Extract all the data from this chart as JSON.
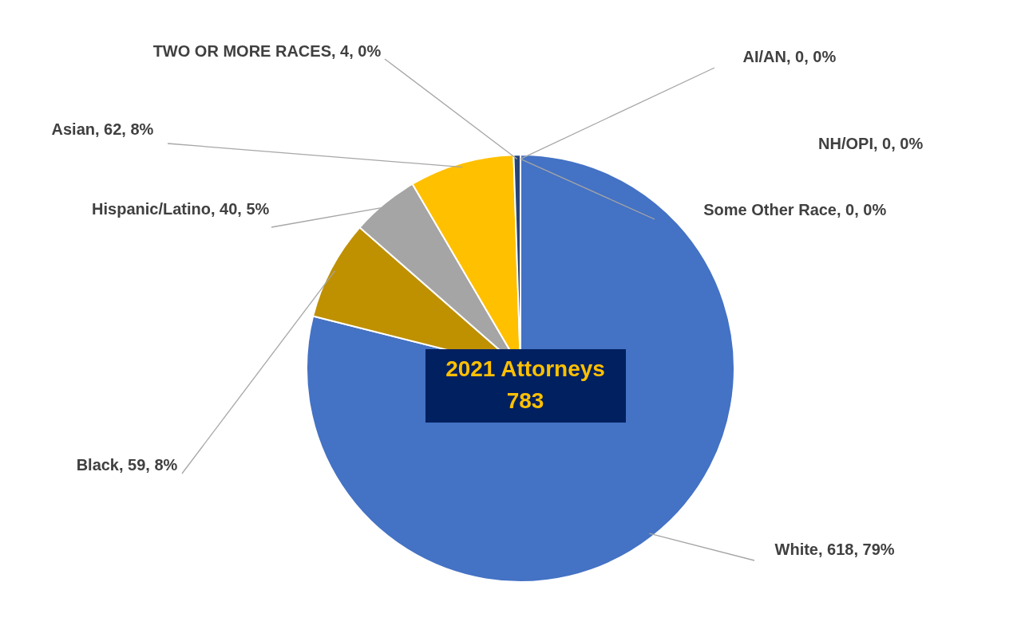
{
  "chart_data": {
    "type": "pie",
    "categories": [
      "White",
      "Black",
      "Hispanic/Latino",
      "Asian",
      "TWO OR MORE RACES",
      "AI/AN",
      "NH/OPI",
      "Some Other Race"
    ],
    "values": [
      618,
      59,
      40,
      62,
      4,
      0,
      0,
      0
    ],
    "colors": [
      "#4472c4",
      "#bf9000",
      "#a5a5a5",
      "#ffc000",
      "#264478",
      "#9e480e",
      "#636363",
      "#997300"
    ],
    "value_labels": [
      ", 618, 79%",
      ", 59, 8%",
      ", 40, 5%",
      ", 62, 8%",
      ", 4, 0%",
      ", 0, 0%",
      ", 0, 0%",
      ", 0, 0%"
    ],
    "annotations": [
      "2021 Attorneys",
      "783"
    ]
  }
}
